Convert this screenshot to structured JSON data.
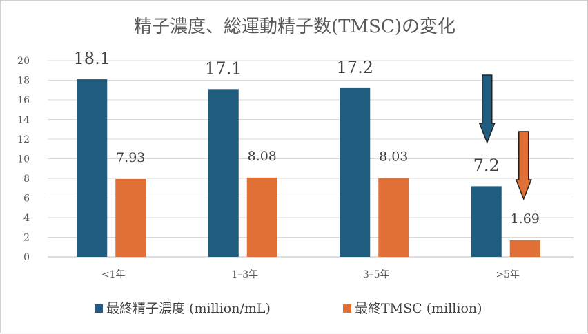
{
  "chart_data": {
    "type": "bar",
    "title": "精子濃度、総運動精子数(TMSC)の変化",
    "categories": [
      "<1年",
      "1–3年",
      "3–5年",
      ">5年"
    ],
    "series": [
      {
        "name": "最終精子濃度 (million/mL)",
        "color": "#1f5c7d",
        "values": [
          18.1,
          17.1,
          17.2,
          7.2
        ],
        "labels": [
          "18.1",
          "17.1",
          "17.2",
          "7.2"
        ]
      },
      {
        "name": "最終TMSC (million)",
        "color": "#e07035",
        "values": [
          7.93,
          8.08,
          8.03,
          1.69
        ],
        "labels": [
          "7.93",
          "8.08",
          "8.03",
          "1.69"
        ]
      }
    ],
    "ylim": [
      0,
      20
    ],
    "yticks": [
      0,
      2,
      4,
      6,
      8,
      10,
      12,
      14,
      16,
      18,
      20
    ],
    "grid": true,
    "legend_position": "bottom",
    "annotations": [
      {
        "type": "down-arrow",
        "series": 0,
        "category": 3
      },
      {
        "type": "down-arrow",
        "series": 1,
        "category": 3
      }
    ]
  }
}
